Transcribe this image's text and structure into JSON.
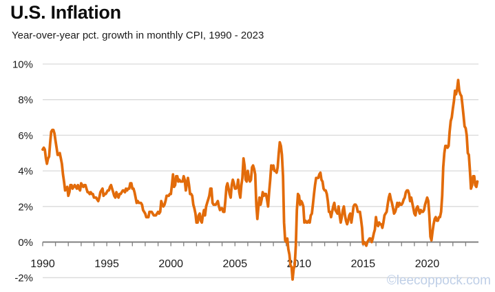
{
  "header": {
    "title": "U.S. Inflation",
    "subtitle": "Year-over-year pct. growth in monthly CPI, 1990 - 2023"
  },
  "watermark": {
    "text": "©leecoppock.com",
    "color": "#bfcfe7"
  },
  "colors": {
    "line": "#E26B0A",
    "gridline": "#D9D9D9",
    "axis": "#7F7F7F",
    "tick_label": "#1a1a1a"
  },
  "chart_data": {
    "type": "line",
    "title": "U.S. Inflation",
    "subtitle": "Year-over-year pct. growth in monthly CPI, 1990 - 2023",
    "series_name": "CPI year-over-year percent growth (monthly)",
    "xlabel": "",
    "ylabel": "",
    "ylim": [
      -2,
      10
    ],
    "x_range": [
      1990,
      2024
    ],
    "grid": "horizontal",
    "legend": "none",
    "y_ticks": [
      {
        "value": 10,
        "label": "10%"
      },
      {
        "value": 8,
        "label": "8%"
      },
      {
        "value": 6,
        "label": "6%"
      },
      {
        "value": 4,
        "label": "4%"
      },
      {
        "value": 2,
        "label": "2%"
      },
      {
        "value": 0,
        "label": "0%"
      },
      {
        "value": -2,
        "label": "-2%"
      }
    ],
    "x_tick_labels": [
      {
        "year": 1990,
        "label": "1990"
      },
      {
        "year": 1995,
        "label": "1995"
      },
      {
        "year": 2000,
        "label": "2000"
      },
      {
        "year": 2005,
        "label": "2005"
      },
      {
        "year": 2010,
        "label": "2010"
      },
      {
        "year": 2015,
        "label": "2015"
      },
      {
        "year": 2020,
        "label": "2020"
      }
    ],
    "minor_tick_every_years": 1,
    "series": [
      {
        "year": 1990,
        "values": [
          5.2,
          5.3,
          5.2,
          4.7,
          4.4,
          4.7,
          4.8,
          5.6,
          6.2,
          6.3,
          6.3,
          6.1
        ]
      },
      {
        "year": 1991,
        "values": [
          5.7,
          5.3,
          4.9,
          4.9,
          5.0,
          4.7,
          4.4,
          3.8,
          3.4,
          2.9,
          3.0,
          3.1
        ]
      },
      {
        "year": 1992,
        "values": [
          2.6,
          2.8,
          3.2,
          3.2,
          3.0,
          3.1,
          3.2,
          3.1,
          3.0,
          3.2,
          3.0,
          2.9
        ]
      },
      {
        "year": 1993,
        "values": [
          3.3,
          3.2,
          3.1,
          3.2,
          3.2,
          3.0,
          2.8,
          2.8,
          2.7,
          2.8,
          2.7,
          2.7
        ]
      },
      {
        "year": 1994,
        "values": [
          2.5,
          2.5,
          2.5,
          2.4,
          2.3,
          2.5,
          2.8,
          2.9,
          3.0,
          2.6,
          2.7,
          2.7
        ]
      },
      {
        "year": 1995,
        "values": [
          2.8,
          2.9,
          2.9,
          3.1,
          3.2,
          3.0,
          2.8,
          2.6,
          2.5,
          2.8,
          2.6,
          2.5
        ]
      },
      {
        "year": 1996,
        "values": [
          2.7,
          2.7,
          2.8,
          2.9,
          2.9,
          2.8,
          3.0,
          2.9,
          3.0,
          3.0,
          3.3,
          3.3
        ]
      },
      {
        "year": 1997,
        "values": [
          3.0,
          3.0,
          2.8,
          2.5,
          2.2,
          2.3,
          2.2,
          2.2,
          2.2,
          2.1,
          1.8,
          1.7
        ]
      },
      {
        "year": 1998,
        "values": [
          1.6,
          1.4,
          1.4,
          1.4,
          1.7,
          1.7,
          1.7,
          1.6,
          1.5,
          1.5,
          1.5,
          1.6
        ]
      },
      {
        "year": 1999,
        "values": [
          1.7,
          1.6,
          1.7,
          2.3,
          2.1,
          2.0,
          2.1,
          2.3,
          2.6,
          2.6,
          2.6,
          2.7
        ]
      },
      {
        "year": 2000,
        "values": [
          2.7,
          3.2,
          3.8,
          3.1,
          3.2,
          3.7,
          3.7,
          3.4,
          3.5,
          3.4,
          3.4,
          3.4
        ]
      },
      {
        "year": 2001,
        "values": [
          3.7,
          3.5,
          2.9,
          3.3,
          3.6,
          3.2,
          2.7,
          2.7,
          2.6,
          2.1,
          1.9,
          1.6
        ]
      },
      {
        "year": 2002,
        "values": [
          1.1,
          1.1,
          1.5,
          1.6,
          1.2,
          1.1,
          1.5,
          1.8,
          1.5,
          2.0,
          2.2,
          2.4
        ]
      },
      {
        "year": 2003,
        "values": [
          2.6,
          3.0,
          3.0,
          2.2,
          2.1,
          2.1,
          2.1,
          2.2,
          2.3,
          2.0,
          1.8,
          1.9
        ]
      },
      {
        "year": 2004,
        "values": [
          1.9,
          1.7,
          1.7,
          2.3,
          3.1,
          3.3,
          3.0,
          2.7,
          2.5,
          3.2,
          3.5,
          3.3
        ]
      },
      {
        "year": 2005,
        "values": [
          3.0,
          3.0,
          3.1,
          3.5,
          2.8,
          2.5,
          3.2,
          3.6,
          4.7,
          4.3,
          3.5,
          3.4
        ]
      },
      {
        "year": 2006,
        "values": [
          4.0,
          3.6,
          3.4,
          3.5,
          4.2,
          4.3,
          4.1,
          3.8,
          2.1,
          1.3,
          2.0,
          2.5
        ]
      },
      {
        "year": 2007,
        "values": [
          2.1,
          2.4,
          2.8,
          2.6,
          2.7,
          2.7,
          2.4,
          2.0,
          2.8,
          3.5,
          4.3,
          4.1
        ]
      },
      {
        "year": 2008,
        "values": [
          4.3,
          4.0,
          4.0,
          3.9,
          4.2,
          5.0,
          5.6,
          5.4,
          4.9,
          3.7,
          1.1,
          0.1
        ]
      },
      {
        "year": 2009,
        "values": [
          0.0,
          0.2,
          -0.4,
          -0.7,
          -1.3,
          -1.4,
          -2.1,
          -1.5,
          -1.3,
          -0.2,
          1.8,
          2.7
        ]
      },
      {
        "year": 2010,
        "values": [
          2.6,
          2.1,
          2.3,
          2.2,
          2.0,
          1.1,
          1.2,
          1.1,
          1.1,
          1.2,
          1.1,
          1.5
        ]
      },
      {
        "year": 2011,
        "values": [
          1.6,
          2.1,
          2.7,
          3.2,
          3.6,
          3.6,
          3.6,
          3.8,
          3.9,
          3.5,
          3.4,
          3.0
        ]
      },
      {
        "year": 2012,
        "values": [
          2.9,
          2.9,
          2.7,
          2.3,
          1.7,
          1.7,
          1.4,
          1.7,
          2.0,
          2.2,
          1.8,
          1.7
        ]
      },
      {
        "year": 2013,
        "values": [
          1.6,
          2.0,
          1.5,
          1.1,
          1.4,
          1.8,
          2.0,
          1.5,
          1.2,
          1.0,
          1.2,
          1.5
        ]
      },
      {
        "year": 2014,
        "values": [
          1.6,
          1.1,
          1.5,
          2.0,
          2.1,
          2.1,
          2.0,
          1.7,
          1.7,
          1.7,
          1.3,
          0.8
        ]
      },
      {
        "year": 2015,
        "values": [
          -0.1,
          0.0,
          -0.1,
          -0.2,
          0.0,
          0.1,
          0.2,
          0.2,
          0.0,
          0.2,
          0.5,
          0.7
        ]
      },
      {
        "year": 2016,
        "values": [
          1.4,
          1.0,
          0.9,
          1.1,
          1.0,
          1.0,
          0.8,
          1.1,
          1.5,
          1.6,
          1.7,
          2.1
        ]
      },
      {
        "year": 2017,
        "values": [
          2.5,
          2.7,
          2.4,
          2.2,
          1.9,
          1.6,
          1.7,
          1.9,
          2.2,
          2.0,
          2.2,
          2.1
        ]
      },
      {
        "year": 2018,
        "values": [
          2.1,
          2.2,
          2.4,
          2.5,
          2.8,
          2.9,
          2.9,
          2.7,
          2.3,
          2.5,
          2.2,
          1.9
        ]
      },
      {
        "year": 2019,
        "values": [
          1.6,
          1.5,
          1.9,
          2.0,
          1.8,
          1.6,
          1.8,
          1.7,
          1.7,
          1.8,
          2.1,
          2.3
        ]
      },
      {
        "year": 2020,
        "values": [
          2.5,
          2.3,
          1.5,
          0.3,
          0.1,
          0.6,
          1.0,
          1.3,
          1.4,
          1.2,
          1.2,
          1.4
        ]
      },
      {
        "year": 2021,
        "values": [
          1.4,
          1.7,
          2.6,
          4.2,
          5.0,
          5.4,
          5.4,
          5.3,
          5.4,
          6.2,
          6.8,
          7.0
        ]
      },
      {
        "year": 2022,
        "values": [
          7.5,
          7.9,
          8.5,
          8.3,
          8.6,
          9.1,
          8.5,
          8.3,
          8.2,
          7.7,
          7.1,
          6.5
        ]
      },
      {
        "year": 2023,
        "values": [
          6.4,
          6.0,
          5.0,
          4.9,
          4.0,
          3.0,
          3.2,
          3.7,
          3.7,
          3.2,
          3.1,
          3.4
        ]
      }
    ]
  }
}
